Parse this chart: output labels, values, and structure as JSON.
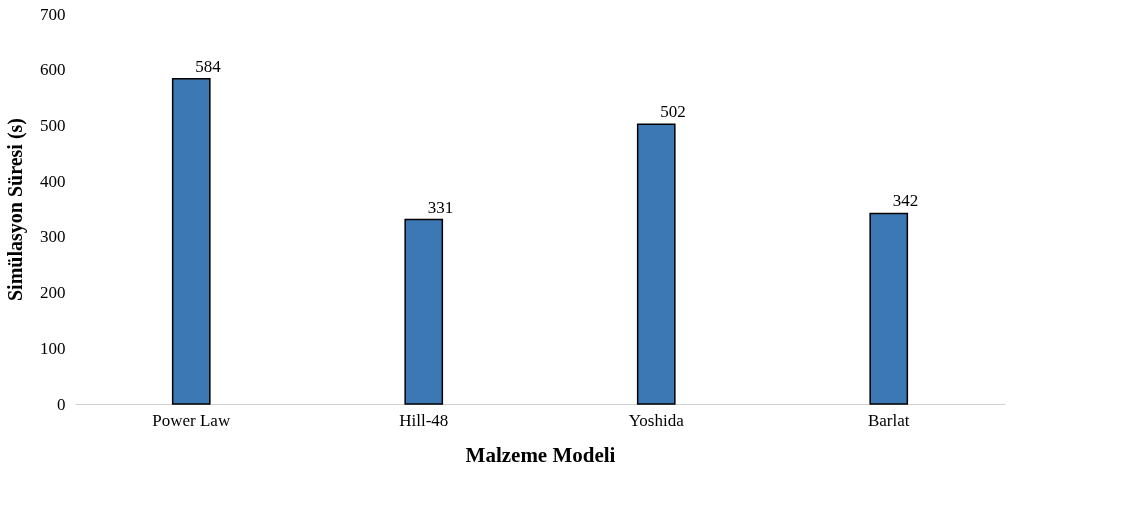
{
  "chart_data": {
    "type": "bar",
    "xlabel": "Malzeme Modeli",
    "ylabel": "Simülasyon Süresi (s)",
    "categories": [
      "Power Law",
      "Hill-48",
      "Yoshida",
      "Barlat"
    ],
    "values": [
      584,
      331,
      502,
      342
    ],
    "color": "#3b78b4",
    "ylim": [
      0,
      700
    ],
    "yticks": [
      0,
      100,
      200,
      300,
      400,
      500,
      600,
      700
    ],
    "grid": false,
    "data_labels": true
  }
}
